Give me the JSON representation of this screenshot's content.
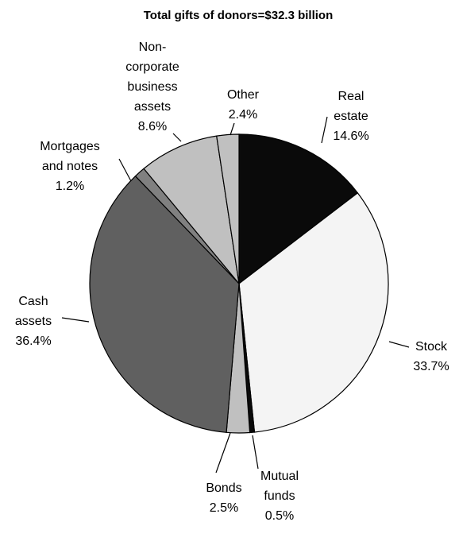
{
  "chart_data": {
    "type": "pie",
    "title": "Total gifts of donors=$32.3 billion",
    "categories": [
      "Real estate",
      "Stock",
      "Mutual funds",
      "Bonds",
      "Cash assets",
      "Mortgages and notes",
      "Non-corporate business assets",
      "Other"
    ],
    "values": [
      14.6,
      33.7,
      0.5,
      2.5,
      36.4,
      1.2,
      8.6,
      2.4
    ],
    "value_labels": [
      "14.6%",
      "33.7%",
      "0.5%",
      "2.5%",
      "36.4%",
      "1.2%",
      "8.6%",
      "2.4%"
    ],
    "colors": [
      "#0a0a0a",
      "#f4f4f4",
      "#0a0a0a",
      "#c0c0c0",
      "#606060",
      "#808080",
      "#c0c0c0",
      "#c0c0c0"
    ]
  }
}
